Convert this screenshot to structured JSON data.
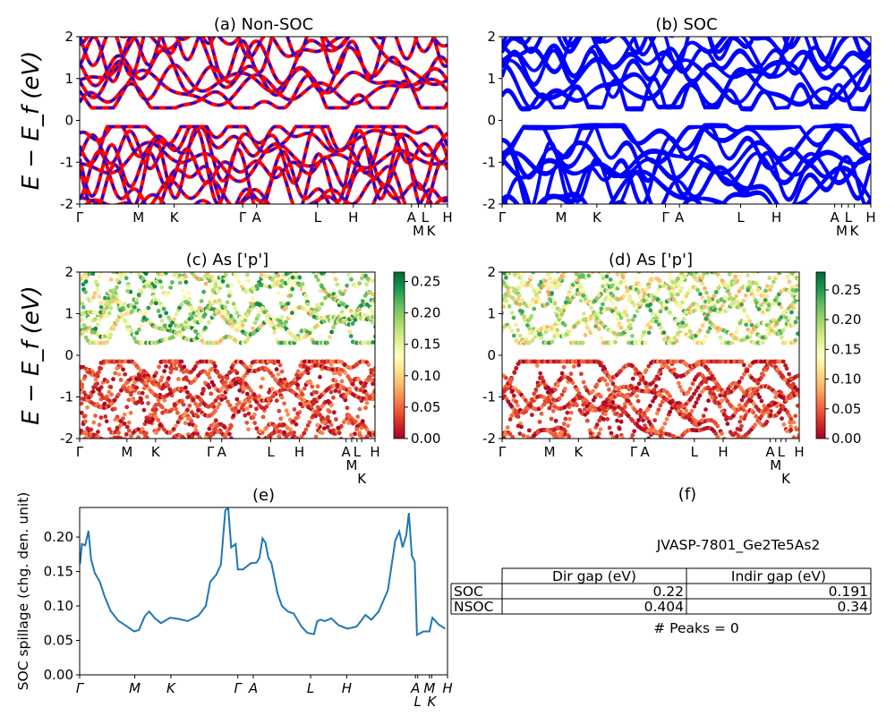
{
  "chart_data": [
    {
      "id": "a",
      "type": "line",
      "title": "(a) Non-SOC",
      "ylabel": "E − E_f (eV)",
      "ylim": [
        -2,
        2
      ],
      "yticks": [
        -2,
        -1,
        0,
        1,
        2
      ],
      "xlim": [
        0,
        1
      ],
      "xticks": {
        "labels": [
          "Γ",
          "M",
          "K",
          "Γ",
          "A",
          "L",
          "H",
          "A",
          "M",
          "L",
          "K",
          "H"
        ],
        "k": [
          0,
          0.16,
          0.257,
          0.443,
          0.481,
          0.647,
          0.744,
          0.902,
          0.921,
          0.939,
          0.955,
          1.0
        ]
      },
      "series_style": [
        {
          "color": "#ff0000",
          "style": "solid"
        },
        {
          "color": "#0000ff",
          "style": "dashed"
        }
      ]
    },
    {
      "id": "b",
      "type": "line",
      "title": "(b) SOC",
      "ylim": [
        -2,
        2
      ],
      "yticks": [
        -2,
        -1,
        0,
        1,
        2
      ],
      "xlim": [
        0,
        1
      ],
      "xticks": {
        "labels": [
          "Γ",
          "M",
          "K",
          "Γ",
          "A",
          "L",
          "H",
          "A",
          "M",
          "L",
          "K",
          "H"
        ],
        "k": [
          0,
          0.16,
          0.257,
          0.443,
          0.481,
          0.647,
          0.744,
          0.902,
          0.921,
          0.939,
          0.955,
          1.0
        ]
      },
      "series_style": [
        {
          "color": "#0000ff",
          "style": "solid"
        }
      ]
    },
    {
      "id": "c",
      "type": "scatter",
      "title": "(c)  As ['p']",
      "ylabel": "E − E_f (eV)",
      "ylim": [
        -2,
        2
      ],
      "yticks": [
        -2,
        -1,
        0,
        1,
        2
      ],
      "xlim": [
        0,
        1
      ],
      "xticks": {
        "labels": [
          "Γ",
          "M",
          "K",
          "Γ",
          "A",
          "L",
          "H",
          "A",
          "M",
          "L",
          "K",
          "H"
        ],
        "k": [
          0,
          0.16,
          0.257,
          0.443,
          0.481,
          0.647,
          0.744,
          0.902,
          0.921,
          0.939,
          0.955,
          1.0
        ]
      },
      "colorbar": {
        "cmap": "RdYlGn",
        "range": [
          0,
          0.265
        ],
        "ticks": [
          "0.00",
          "0.05",
          "0.10",
          "0.15",
          "0.20",
          "0.25"
        ]
      }
    },
    {
      "id": "d",
      "type": "scatter",
      "title": "(d) As ['p']",
      "ylim": [
        -2,
        2
      ],
      "yticks": [
        -2,
        -1,
        0,
        1,
        2
      ],
      "xlim": [
        0,
        1
      ],
      "xticks": {
        "labels": [
          "Γ",
          "M",
          "K",
          "Γ",
          "A",
          "L",
          "H",
          "A",
          "M",
          "L",
          "K",
          "H"
        ],
        "k": [
          0,
          0.16,
          0.257,
          0.443,
          0.481,
          0.647,
          0.744,
          0.902,
          0.921,
          0.939,
          0.955,
          1.0
        ]
      },
      "colorbar": {
        "cmap": "RdYlGn",
        "range": [
          0,
          0.28
        ],
        "ticks": [
          "0.00",
          "0.05",
          "0.10",
          "0.15",
          "0.20",
          "0.25"
        ]
      }
    },
    {
      "id": "e",
      "type": "line",
      "title": "(e)",
      "ylabel": "SOC spillage (chg. den. unit)",
      "ylim": [
        0,
        0.243
      ],
      "yticks": [
        "0.00",
        "0.05",
        "0.10",
        "0.15",
        "0.20"
      ],
      "xlim": [
        0,
        1
      ],
      "xticks": {
        "labels": [
          "Γ",
          "M",
          "K",
          "Γ",
          "A",
          "L",
          "H",
          "A",
          "L",
          "M",
          "K",
          "H"
        ],
        "k": [
          0,
          0.15,
          0.248,
          0.43,
          0.472,
          0.628,
          0.726,
          0.913,
          0.919,
          0.951,
          0.957,
          1.0
        ]
      },
      "color": "#1f77b4",
      "x": [
        0.001,
        0.006,
        0.015,
        0.024,
        0.031,
        0.041,
        0.055,
        0.067,
        0.084,
        0.104,
        0.124,
        0.148,
        0.161,
        0.177,
        0.189,
        0.205,
        0.221,
        0.246,
        0.27,
        0.294,
        0.323,
        0.343,
        0.355,
        0.371,
        0.384,
        0.396,
        0.404,
        0.412,
        0.424,
        0.43,
        0.444,
        0.465,
        0.481,
        0.489,
        0.497,
        0.505,
        0.513,
        0.521,
        0.538,
        0.55,
        0.566,
        0.582,
        0.603,
        0.619,
        0.637,
        0.646,
        0.655,
        0.667,
        0.684,
        0.704,
        0.728,
        0.753,
        0.777,
        0.793,
        0.813,
        0.838,
        0.858,
        0.869,
        0.878,
        0.888,
        0.895,
        0.903,
        0.911,
        0.917,
        0.935,
        0.951,
        0.959,
        0.976,
        0.994
      ],
      "y": [
        0.161,
        0.19,
        0.188,
        0.209,
        0.168,
        0.148,
        0.135,
        0.115,
        0.093,
        0.079,
        0.072,
        0.063,
        0.065,
        0.085,
        0.092,
        0.082,
        0.075,
        0.083,
        0.081,
        0.078,
        0.086,
        0.1,
        0.135,
        0.145,
        0.16,
        0.239,
        0.242,
        0.185,
        0.19,
        0.153,
        0.153,
        0.162,
        0.163,
        0.17,
        0.198,
        0.192,
        0.17,
        0.163,
        0.118,
        0.1,
        0.092,
        0.089,
        0.07,
        0.061,
        0.059,
        0.078,
        0.08,
        0.078,
        0.082,
        0.072,
        0.067,
        0.07,
        0.087,
        0.08,
        0.092,
        0.123,
        0.195,
        0.208,
        0.185,
        0.203,
        0.235,
        0.173,
        0.164,
        0.058,
        0.063,
        0.063,
        0.083,
        0.073,
        0.067
      ]
    },
    {
      "id": "f",
      "type": "table",
      "title": "(f)",
      "material": "JVASP-7801_Ge2Te5As2",
      "columns": [
        "Dir gap (eV)",
        "Indir gap (eV)"
      ],
      "rows": [
        {
          "label": "SOC",
          "values": [
            "0.22",
            "0.191"
          ]
        },
        {
          "label": "NSOC",
          "values": [
            "0.404",
            "0.34"
          ]
        }
      ],
      "footer": "# Peaks = 0"
    }
  ]
}
